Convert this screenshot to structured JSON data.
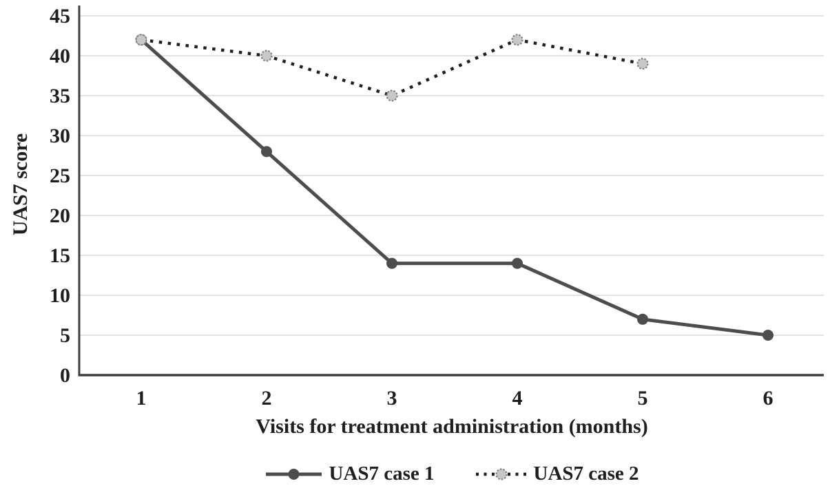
{
  "figure": {
    "background": "#ffffff"
  },
  "chart_data": {
    "type": "line",
    "title": "",
    "xlabel": "Visits for treatment administration (months)",
    "ylabel": "UAS7 score",
    "categories": [
      "1",
      "2",
      "3",
      "4",
      "5",
      "6"
    ],
    "yticks": [
      0,
      5,
      10,
      15,
      20,
      25,
      30,
      35,
      40,
      45
    ],
    "ylim": [
      0,
      45
    ],
    "grid": true,
    "legend_position": "bottom",
    "series": [
      {
        "name": "UAS7 case 1",
        "values": [
          42,
          28,
          14,
          14,
          7,
          5
        ],
        "line_style": "solid",
        "color": "#4d4d4d",
        "marker": "filled-circle",
        "marker_fill": "#4d4d4d",
        "marker_stroke": "#4d4d4d"
      },
      {
        "name": "UAS7 case 2",
        "values": [
          42,
          40,
          35,
          42,
          39,
          null
        ],
        "line_style": "dotted",
        "color": "#1f1f1f",
        "marker": "stippled-circle",
        "marker_fill": "#c8c8c8",
        "marker_stroke": "#7f7f7f"
      }
    ],
    "colors": {
      "grid": "#d9d9d9",
      "axis": "#3f3f3f",
      "text": "#1f1f1f"
    }
  }
}
